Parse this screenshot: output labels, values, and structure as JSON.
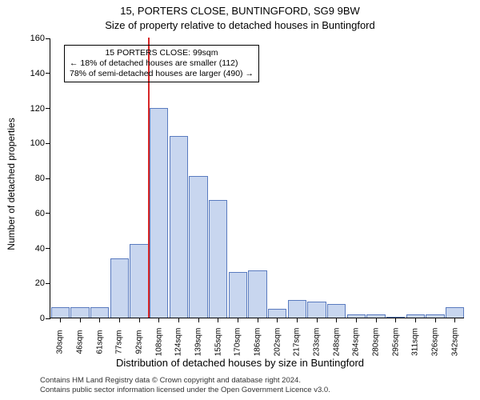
{
  "chart": {
    "type": "histogram",
    "title_line1": "15, PORTERS CLOSE, BUNTINGFORD, SG9 9BW",
    "title_line2": "Size of property relative to detached houses in Buntingford",
    "ylabel": "Number of detached properties",
    "xlabel": "Distribution of detached houses by size in Buntingford",
    "background_color": "#ffffff",
    "bar_fill": "#c8d6ef",
    "bar_stroke": "#5a7bbf",
    "marker_color": "#d62728",
    "text_color": "#000000",
    "ylim": [
      0,
      160
    ],
    "ytick_step": 20,
    "yticks": [
      0,
      20,
      40,
      60,
      80,
      100,
      120,
      140,
      160
    ],
    "n_bars": 21,
    "xtick_labels": [
      "30sqm",
      "46sqm",
      "61sqm",
      "77sqm",
      "92sqm",
      "108sqm",
      "124sqm",
      "139sqm",
      "155sqm",
      "170sqm",
      "186sqm",
      "202sqm",
      "217sqm",
      "233sqm",
      "248sqm",
      "264sqm",
      "280sqm",
      "295sqm",
      "311sqm",
      "326sqm",
      "342sqm"
    ],
    "values": [
      6,
      6,
      6,
      34,
      42,
      120,
      104,
      81,
      67,
      26,
      27,
      5,
      10,
      9,
      8,
      2,
      2,
      0,
      2,
      2,
      6
    ],
    "marker_bar_boundary_index": 5,
    "annotation": {
      "line1": "15 PORTERS CLOSE: 99sqm",
      "line2": "← 18% of detached houses are smaller (112)",
      "line3": "78% of semi-detached houses are larger (490) →"
    },
    "attribution": {
      "line1": "Contains HM Land Registry data © Crown copyright and database right 2024.",
      "line2": "Contains public sector information licensed under the Open Government Licence v3.0."
    },
    "title_fontsize": 13,
    "label_fontsize": 12,
    "tick_fontsize": 10
  }
}
